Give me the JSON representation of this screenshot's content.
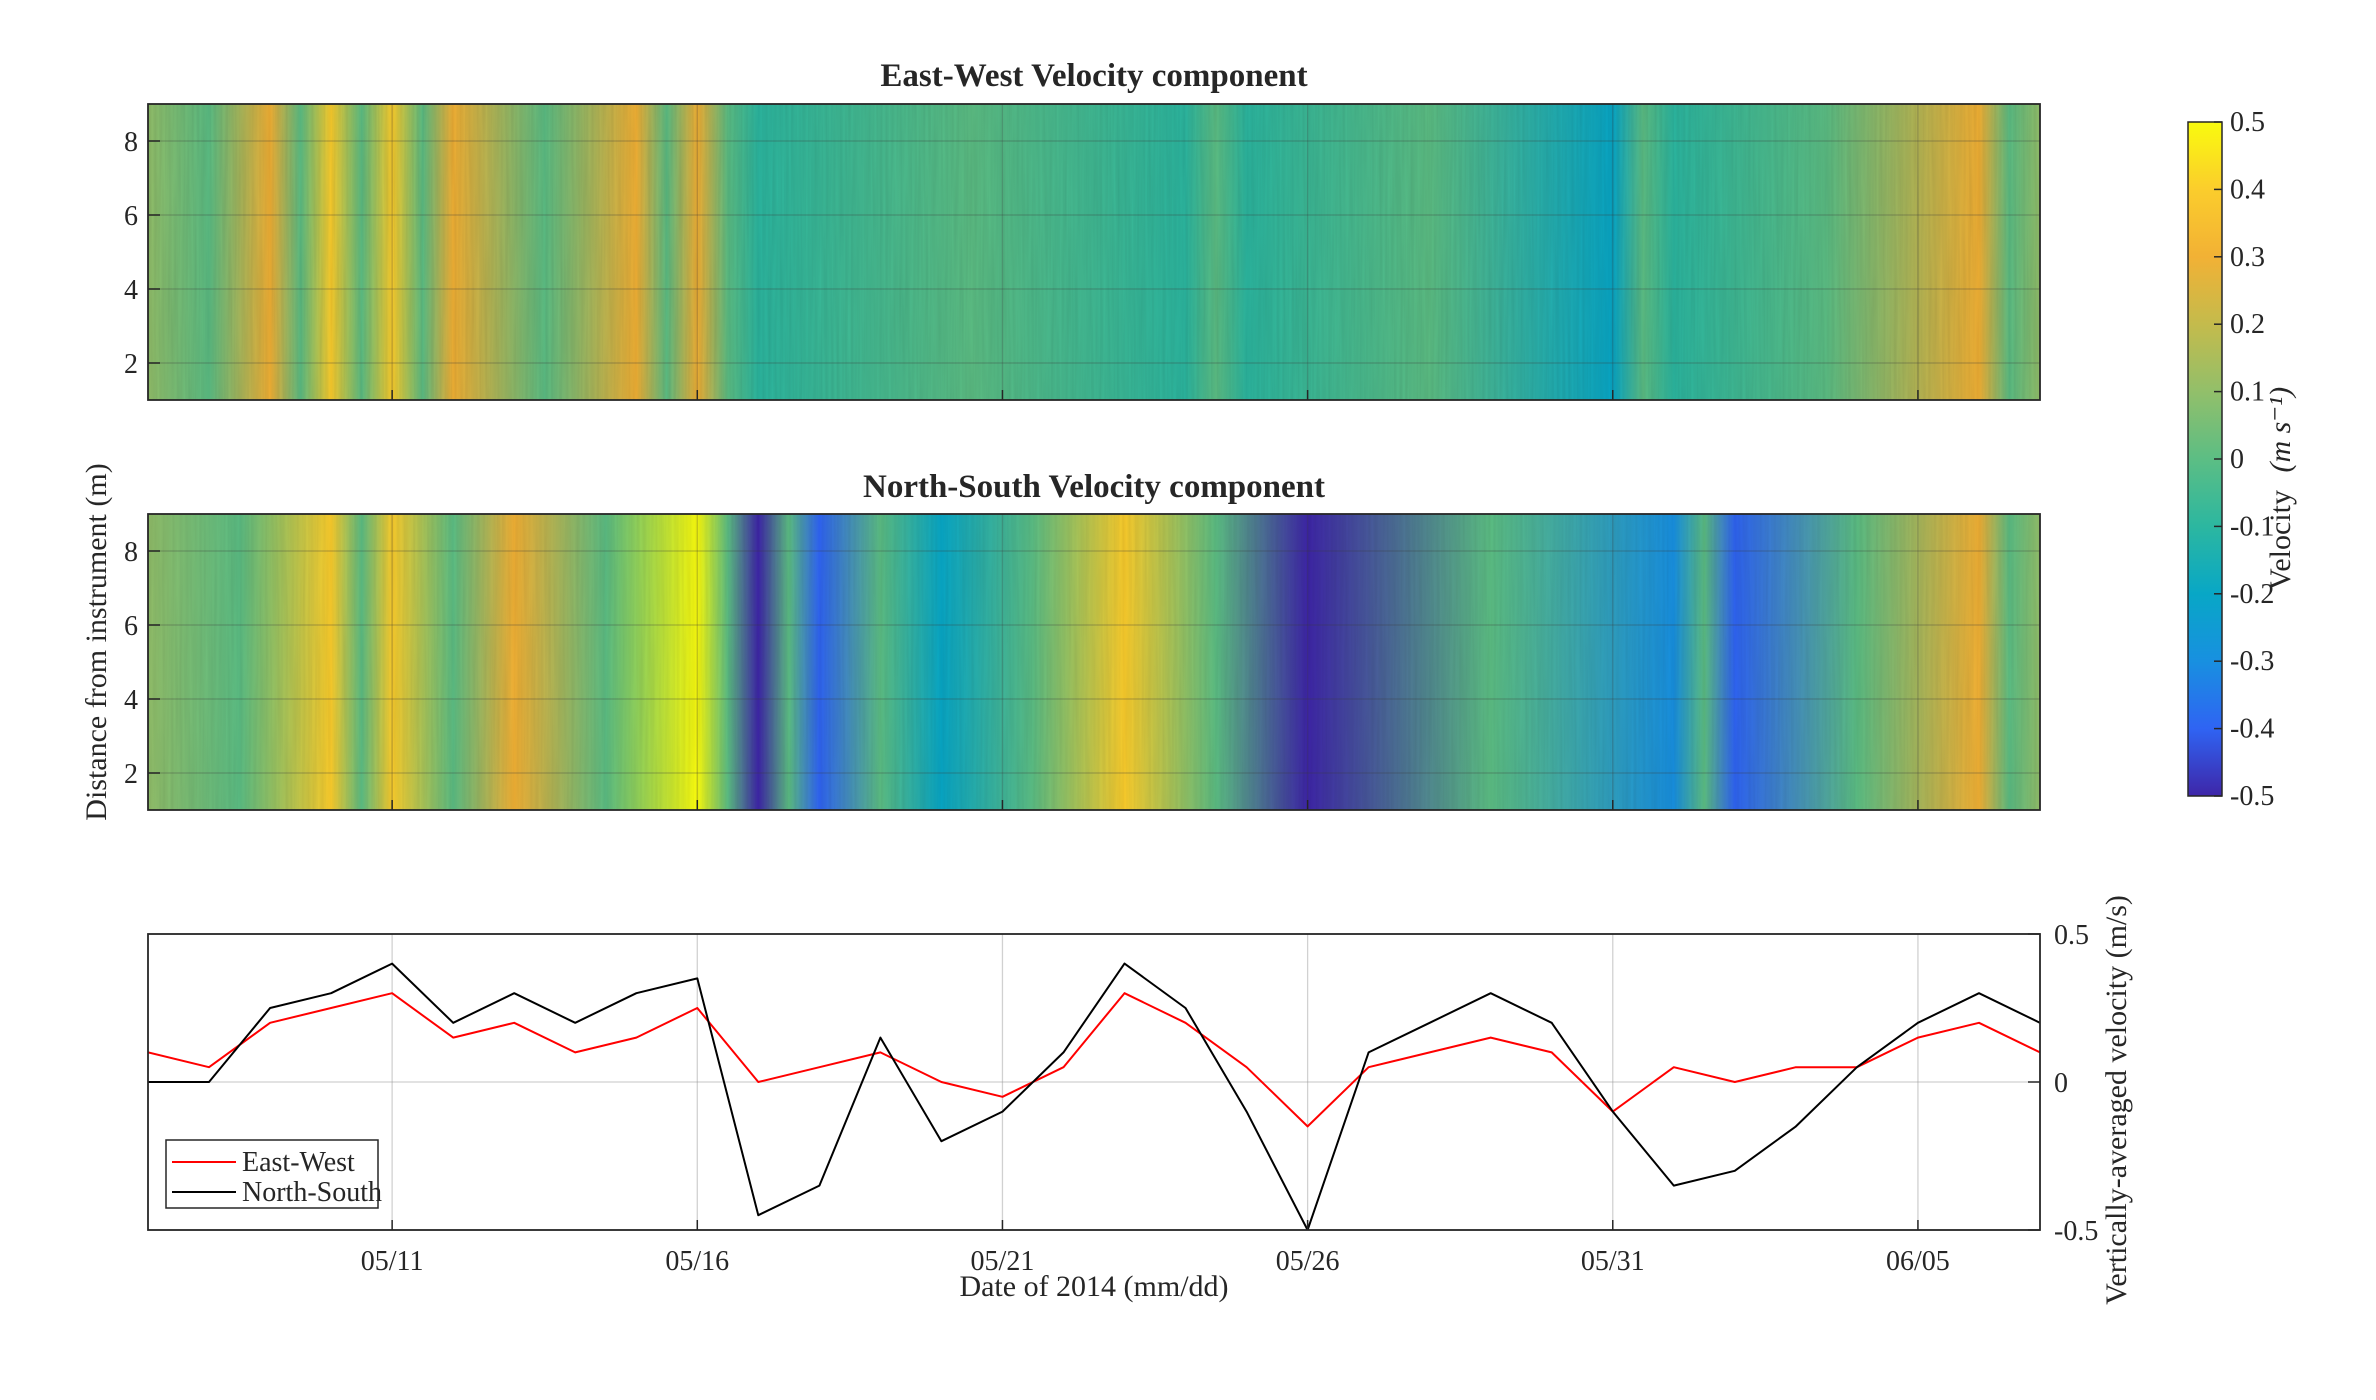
{
  "chart_data": [
    {
      "type": "heatmap",
      "title": "East-West Velocity component",
      "ylim": [
        1,
        9
      ],
      "yticks": [
        2,
        4,
        6,
        8
      ],
      "x_range_days": [
        "05/07",
        "06/07"
      ],
      "bands": [
        {
          "date": "05/09",
          "value": 0.3
        },
        {
          "date": "05/10",
          "value": 0.35
        },
        {
          "date": "05/11",
          "value": 0.35
        },
        {
          "date": "05/12",
          "value": 0.25
        },
        {
          "date": "05/15",
          "value": 0.25
        },
        {
          "date": "05/16",
          "value": 0.3
        },
        {
          "date": "05/17",
          "value": -0.1
        },
        {
          "date": "05/24",
          "value": -0.15
        },
        {
          "date": "05/25",
          "value": -0.15
        },
        {
          "date": "05/31",
          "value": -0.2
        },
        {
          "date": "06/01",
          "value": -0.15
        },
        {
          "date": "06/06",
          "value": 0.25
        }
      ]
    },
    {
      "type": "heatmap",
      "title": "North-South Velocity component",
      "ylim": [
        1,
        9
      ],
      "yticks": [
        2,
        4,
        6,
        8
      ],
      "x_range_days": [
        "05/07",
        "06/07"
      ],
      "bands": [
        {
          "date": "05/10",
          "value": 0.35
        },
        {
          "date": "05/11",
          "value": 0.4
        },
        {
          "date": "05/13",
          "value": 0.25
        },
        {
          "date": "05/16",
          "value": 0.45
        },
        {
          "date": "05/17",
          "value": -0.45
        },
        {
          "date": "05/18",
          "value": -0.4
        },
        {
          "date": "05/20",
          "value": -0.25
        },
        {
          "date": "05/23",
          "value": 0.35
        },
        {
          "date": "05/26",
          "value": -0.5
        },
        {
          "date": "06/01",
          "value": -0.35
        },
        {
          "date": "06/02",
          "value": -0.4
        },
        {
          "date": "06/06",
          "value": 0.25
        }
      ]
    },
    {
      "type": "line",
      "xlabel": "Date of 2014 (mm/dd)",
      "ylabel": "Vertically-averaged velocity (m/s)",
      "ylim": [
        -0.5,
        0.5
      ],
      "yticks": [
        "0.5",
        "0",
        "-0.5"
      ],
      "xticks": [
        "05/11",
        "05/16",
        "05/21",
        "05/26",
        "05/31",
        "06/05"
      ],
      "grid": true,
      "legend_position": "bottom-left",
      "series": [
        {
          "name": "East-West",
          "color": "#ff0000",
          "points": [
            [
              "05/07",
              0.1
            ],
            [
              "05/08",
              0.05
            ],
            [
              "05/09",
              0.2
            ],
            [
              "05/10",
              0.25
            ],
            [
              "05/11",
              0.3
            ],
            [
              "05/12",
              0.15
            ],
            [
              "05/13",
              0.2
            ],
            [
              "05/14",
              0.1
            ],
            [
              "05/15",
              0.15
            ],
            [
              "05/16",
              0.25
            ],
            [
              "05/17",
              0.0
            ],
            [
              "05/18",
              0.05
            ],
            [
              "05/19",
              0.1
            ],
            [
              "05/20",
              0.0
            ],
            [
              "05/21",
              -0.05
            ],
            [
              "05/22",
              0.05
            ],
            [
              "05/23",
              0.3
            ],
            [
              "05/24",
              0.2
            ],
            [
              "05/25",
              0.05
            ],
            [
              "05/26",
              -0.15
            ],
            [
              "05/27",
              0.05
            ],
            [
              "05/28",
              0.1
            ],
            [
              "05/29",
              0.15
            ],
            [
              "05/30",
              0.1
            ],
            [
              "05/31",
              -0.1
            ],
            [
              "06/01",
              0.05
            ],
            [
              "06/02",
              0.0
            ],
            [
              "06/03",
              0.05
            ],
            [
              "06/04",
              0.05
            ],
            [
              "06/05",
              0.15
            ],
            [
              "06/06",
              0.2
            ],
            [
              "06/07",
              0.1
            ]
          ]
        },
        {
          "name": "North-South",
          "color": "#000000",
          "points": [
            [
              "05/07",
              0.0
            ],
            [
              "05/08",
              0.0
            ],
            [
              "05/09",
              0.25
            ],
            [
              "05/10",
              0.3
            ],
            [
              "05/11",
              0.4
            ],
            [
              "05/12",
              0.2
            ],
            [
              "05/13",
              0.3
            ],
            [
              "05/14",
              0.2
            ],
            [
              "05/15",
              0.3
            ],
            [
              "05/16",
              0.35
            ],
            [
              "05/17",
              -0.45
            ],
            [
              "05/18",
              -0.35
            ],
            [
              "05/19",
              0.15
            ],
            [
              "05/20",
              -0.2
            ],
            [
              "05/21",
              -0.1
            ],
            [
              "05/22",
              0.1
            ],
            [
              "05/23",
              0.4
            ],
            [
              "05/24",
              0.25
            ],
            [
              "05/25",
              -0.1
            ],
            [
              "05/26",
              -0.5
            ],
            [
              "05/27",
              0.1
            ],
            [
              "05/28",
              0.2
            ],
            [
              "05/29",
              0.3
            ],
            [
              "05/30",
              0.2
            ],
            [
              "05/31",
              -0.1
            ],
            [
              "06/01",
              -0.35
            ],
            [
              "06/02",
              -0.3
            ],
            [
              "06/03",
              -0.15
            ],
            [
              "06/04",
              0.05
            ],
            [
              "06/05",
              0.2
            ],
            [
              "06/06",
              0.3
            ],
            [
              "06/07",
              0.2
            ]
          ]
        }
      ]
    }
  ],
  "shared_ylabel": "Distance from instrument (m)",
  "colorbar": {
    "label": "Velocity",
    "units_tex": "(m s⁻¹)",
    "min": -0.5,
    "max": 0.5,
    "ticks": [
      "0.5",
      "0.4",
      "0.3",
      "0.2",
      "0.1",
      "0",
      "-0.1",
      "-0.2",
      "-0.3",
      "-0.4",
      "-0.5"
    ],
    "colors": [
      "#3e26a8",
      "#2f64f3",
      "#1890e0",
      "#08a7c6",
      "#2cb7a0",
      "#5cbe84",
      "#92bf6a",
      "#c4bb4c",
      "#f2b135",
      "#fbcd2c",
      "#f9fb0e"
    ]
  }
}
